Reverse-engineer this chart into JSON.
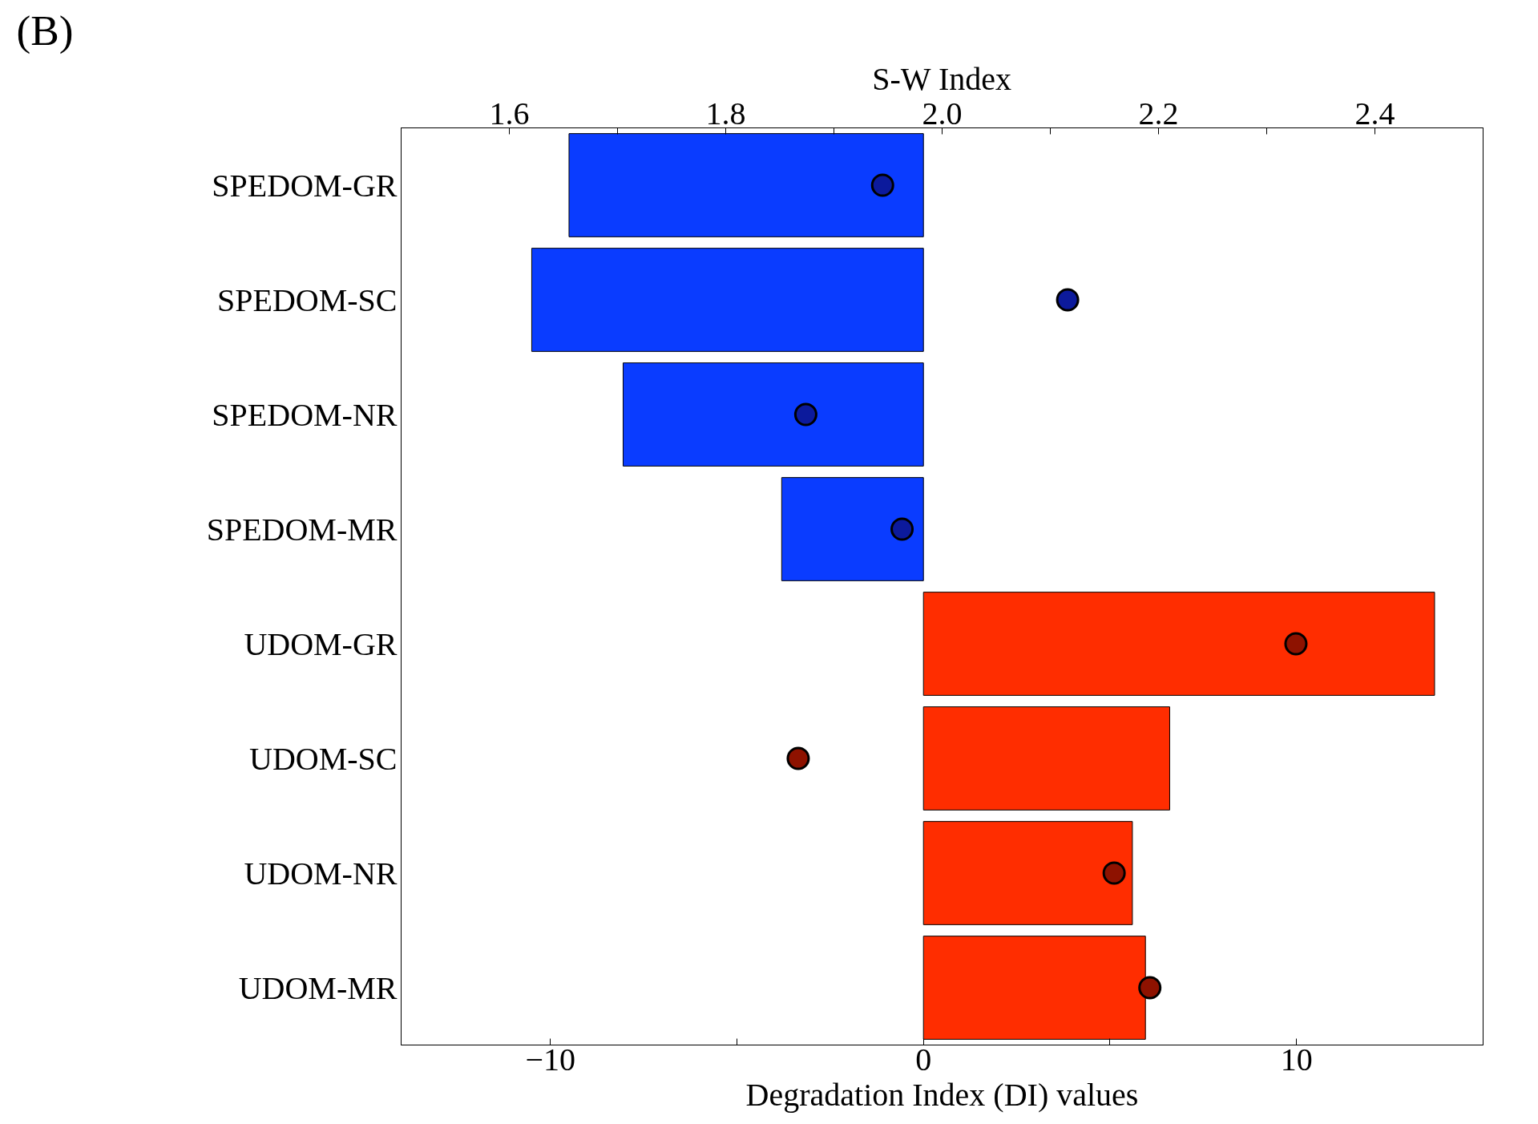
{
  "chart_data": {
    "type": "bar",
    "orientation": "horizontal",
    "xlabel": "Degradation Index (DI) values",
    "x2label": "S-W Index",
    "categories": [
      "SPEDOM-GR",
      "SPEDOM-SC",
      "SPEDOM-NR",
      "SPEDOM-MR",
      "UDOM-GR",
      "UDOM-SC",
      "UDOM-NR",
      "UDOM-MR"
    ],
    "series": [
      {
        "values": [
          -9.5,
          -10.5,
          -8.05,
          -3.8,
          13.7,
          6.6,
          5.6,
          5.95
        ],
        "colors": [
          "#0a3cff",
          "#0a3cff",
          "#0a3cff",
          "#0a3cff",
          "#ff2d00",
          "#ff2d00",
          "#ff2d00",
          "#ff2d00"
        ]
      },
      {
        "type": "scatter",
        "axis": "x2",
        "marker": "circle",
        "values": [
          1.945,
          2.116,
          1.874,
          1.963,
          2.327,
          1.867,
          2.159,
          2.192
        ],
        "colors": [
          "#0c1a9c",
          "#0c1a9c",
          "#0c1a9c",
          "#0c1a9c",
          "#8e1200",
          "#8e1200",
          "#8e1200",
          "#8e1200"
        ]
      }
    ],
    "xlim": [
      -14,
      15
    ],
    "xticks": [
      {
        "value": -10,
        "label": "−10"
      },
      {
        "value": -5,
        "label": null
      },
      0,
      {
        "value": 5,
        "label": null
      },
      10,
      {
        "value": 15,
        "label": null
      }
    ],
    "x2lim": [
      1.5,
      2.5
    ],
    "x2ticks": [
      {
        "value": 1.5,
        "label": null
      },
      1.6,
      {
        "value": 1.7,
        "label": null
      },
      1.8,
      {
        "value": 1.9,
        "label": null
      },
      {
        "value": 2.0,
        "label": "2.0"
      },
      {
        "value": 2.1,
        "label": null
      },
      2.2,
      {
        "value": 2.3,
        "label": null
      },
      2.4,
      {
        "value": 2.5,
        "label": null
      }
    ],
    "grid": false,
    "annotations": [
      "(B)"
    ]
  }
}
